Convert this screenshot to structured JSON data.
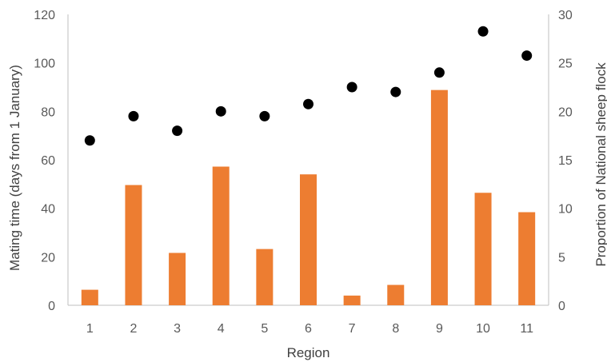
{
  "chart_data": {
    "type": "bar",
    "combo": "bar + scatter, dual y-axis",
    "xlabel": "Region",
    "categories": [
      "1",
      "2",
      "3",
      "4",
      "5",
      "6",
      "7",
      "8",
      "9",
      "10",
      "11"
    ],
    "series": [
      {
        "type": "scatter",
        "axis": "left",
        "color": "#000000",
        "values": [
          68,
          78,
          72,
          80,
          78,
          83,
          90,
          88,
          96,
          113,
          103
        ]
      },
      {
        "type": "bar",
        "axis": "right",
        "color": "#ed7d31",
        "values": [
          1.6,
          12.4,
          5.4,
          14.3,
          5.8,
          13.5,
          1.0,
          2.1,
          22.2,
          11.6,
          9.6
        ]
      }
    ],
    "y_left": {
      "label": "Mating time (days from 1 January)",
      "ylim": [
        0,
        120
      ],
      "ticks": [
        "0",
        "20",
        "40",
        "60",
        "80",
        "100",
        "120"
      ]
    },
    "y_right": {
      "label": "Proportion of National sheep flock",
      "ylim": [
        0,
        30
      ],
      "ticks": [
        "0",
        "5",
        "10",
        "15",
        "20",
        "25",
        "30"
      ]
    },
    "grid": false,
    "legend": "none"
  }
}
